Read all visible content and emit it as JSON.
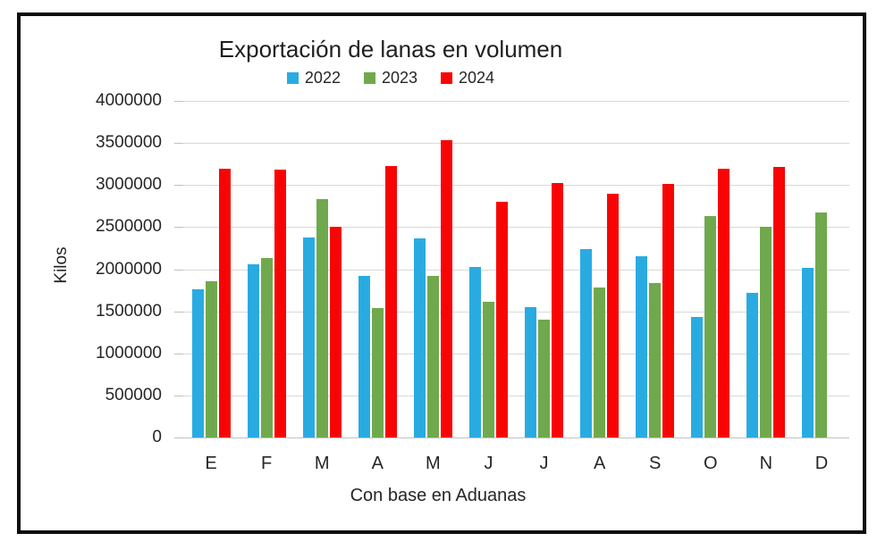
{
  "chart_data": {
    "type": "bar",
    "title": "Exportación de lanas en volumen",
    "xlabel": "Con base en Aduanas",
    "ylabel": "Kilos",
    "categories": [
      "E",
      "F",
      "M",
      "A",
      "M",
      "J",
      "J",
      "A",
      "S",
      "O",
      "N",
      "D"
    ],
    "series": [
      {
        "name": "2022",
        "color": "#29ABE2",
        "values": [
          1760000,
          2060000,
          2380000,
          1920000,
          2370000,
          2030000,
          1550000,
          2240000,
          2150000,
          1430000,
          1720000,
          2020000
        ]
      },
      {
        "name": "2023",
        "color": "#70A94D",
        "values": [
          1860000,
          2130000,
          2830000,
          1540000,
          1920000,
          1610000,
          1400000,
          1780000,
          1840000,
          2630000,
          2500000,
          2670000
        ]
      },
      {
        "name": "2024",
        "color": "#F70505",
        "values": [
          3190000,
          3180000,
          2500000,
          3230000,
          3530000,
          2800000,
          3020000,
          2900000,
          3010000,
          3190000,
          3210000,
          null
        ]
      }
    ],
    "ylim": [
      0,
      4000000
    ],
    "ytick_step": 500000,
    "yticks": [
      0,
      500000,
      1000000,
      1500000,
      2000000,
      2500000,
      3000000,
      3500000,
      4000000
    ],
    "grid": true,
    "legend_position": "top",
    "gridline_color": "#D9D9D9",
    "text_color": "#262626"
  }
}
